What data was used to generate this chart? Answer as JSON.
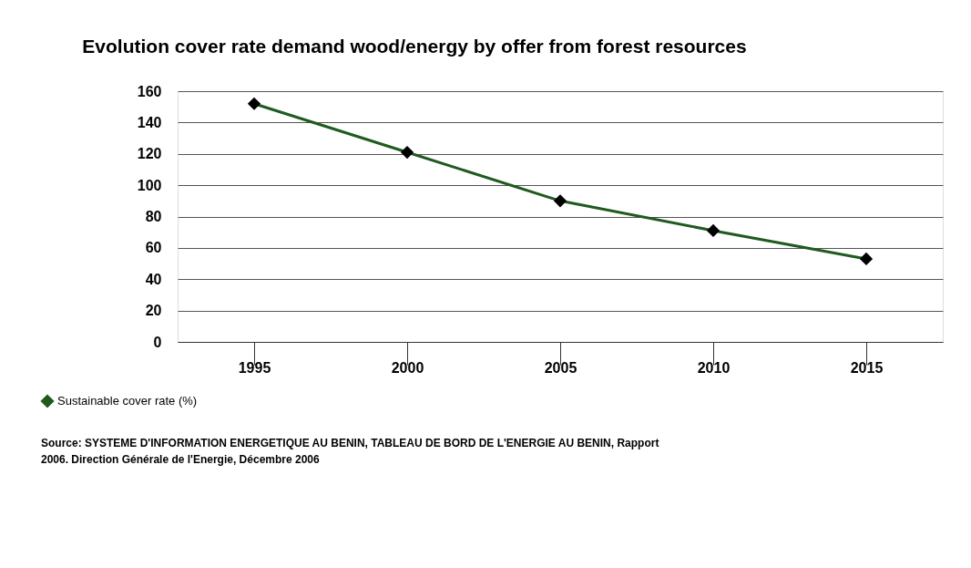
{
  "chart_data": {
    "type": "line",
    "title": "Evolution cover rate demand wood/energy by offer from forest resources",
    "categories": [
      "1995",
      "2000",
      "2005",
      "2010",
      "2015"
    ],
    "series": [
      {
        "name": "Sustainable cover rate (%)",
        "color": "#1f5a1f",
        "values": [
          152,
          121,
          90,
          71,
          53
        ]
      }
    ],
    "ylim": [
      0,
      160
    ],
    "yticks": [
      0,
      20,
      40,
      60,
      80,
      100,
      120,
      140,
      160
    ],
    "grid": "y",
    "legend": "bottom left",
    "marker": "diamond",
    "line_style": "solid",
    "annotations": [
      "Source: SYSTEME D'INFORMATION ENERGETIQUE AU BENIN, TABLEAU DE BORD DE L'ENERGIE AU BENIN, Rapport",
      "2006. Direction Générale de l'Energie,  Décembre 2006"
    ]
  }
}
